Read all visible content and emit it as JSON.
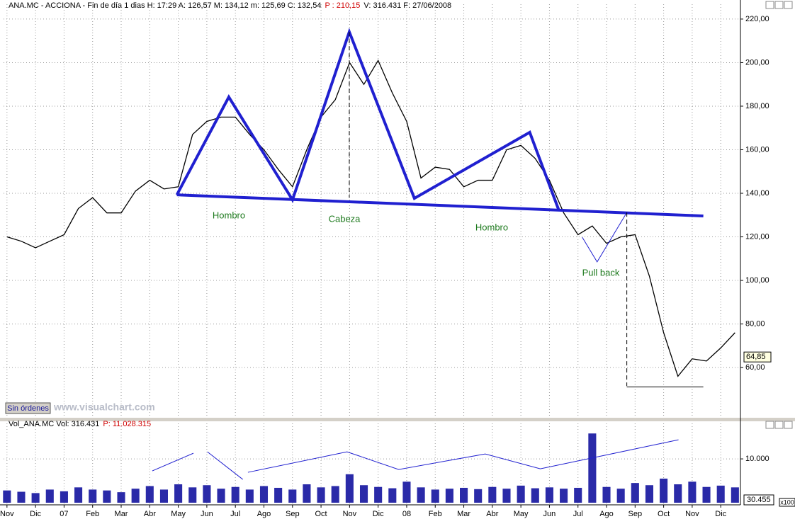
{
  "chart_data": [
    {
      "type": "line",
      "title": "ANA.MC - ACCIONA - Fin de día 1 dias  H: 17:29  A: 126,57  M: 134,12  m: 125,69  C: 132,54",
      "title_highlight": "P : 210,15",
      "title_tail": "V: 316.431  F: 27/06/2008",
      "x": [
        0,
        0.5,
        1,
        1.5,
        2,
        2.5,
        3,
        3.5,
        4,
        4.5,
        5,
        5.5,
        6,
        6.5,
        7,
        7.5,
        8,
        8.5,
        9,
        9.5,
        10,
        10.5,
        11,
        11.5,
        12,
        12.5,
        13,
        13.5,
        14,
        14.5,
        15,
        15.5,
        16,
        16.5,
        17,
        17.5,
        18,
        18.5,
        19,
        19.5,
        20,
        20.5,
        21,
        21.5,
        22,
        22.5,
        23,
        23.5,
        24,
        24.5,
        25,
        25.5
      ],
      "values": [
        120,
        118,
        115,
        118,
        121,
        133,
        138,
        131,
        131,
        141,
        146,
        142,
        143,
        167,
        173,
        175,
        175,
        167,
        160,
        151,
        143,
        160,
        175,
        183,
        200,
        190,
        201,
        186,
        173,
        147,
        152,
        151,
        143,
        146,
        146,
        160,
        162,
        156,
        146,
        131,
        121,
        125,
        117,
        120,
        121,
        102,
        76,
        56,
        64,
        63,
        69,
        76
      ],
      "color": "#000000",
      "xlim": [
        -0.12,
        25.69
      ],
      "xticks": [
        0,
        1,
        2,
        3,
        4,
        5,
        6,
        7,
        8,
        9,
        10,
        11,
        12,
        13,
        14,
        15,
        16,
        17,
        18,
        19,
        20,
        21,
        22,
        23,
        24,
        25
      ],
      "ylim": [
        37.6,
        224.2
      ],
      "yticks": [
        {
          "value": 60,
          "label": "60,00"
        },
        {
          "value": 80,
          "label": "80,00"
        },
        {
          "value": 100,
          "label": "100,00"
        },
        {
          "value": 120,
          "label": "120,00"
        },
        {
          "value": 140,
          "label": "140,00"
        },
        {
          "value": 160,
          "label": "160,00"
        },
        {
          "value": 180,
          "label": "180,00"
        },
        {
          "value": 200,
          "label": "200,00"
        },
        {
          "value": 220,
          "label": "220,00"
        }
      ],
      "grid": true,
      "last_value": {
        "value": 64.85,
        "label": "64,85"
      },
      "annotations": [
        "Hombro",
        "Cabeza",
        "Hombro",
        "Pull back"
      ],
      "pattern_lines": [
        {
          "color": "#2020d0",
          "width": 4,
          "dashed": false,
          "points": [
            [
              5.95,
              139.3
            ],
            [
              7.77,
              184.2
            ],
            [
              10.0,
              137
            ],
            [
              11.99,
              214.1
            ],
            [
              14.27,
              137.7
            ],
            [
              18.31,
              168
            ],
            [
              19.33,
              132.2
            ]
          ]
        },
        {
          "color": "#2020d0",
          "width": 4,
          "dashed": false,
          "points": [
            [
              5.95,
              139.3
            ],
            [
              24.39,
              129.6
            ]
          ]
        },
        {
          "color": "#2020d0",
          "width": 1,
          "dashed": false,
          "points": [
            [
              20.15,
              119.8
            ],
            [
              20.67,
              108.5
            ],
            [
              21.71,
              131.2
            ]
          ]
        },
        {
          "color": "#000000",
          "width": 1,
          "dashed": true,
          "points": [
            [
              11.99,
              214.1
            ],
            [
              11.99,
              138
            ]
          ]
        },
        {
          "color": "#000000",
          "width": 1,
          "dashed": true,
          "points": [
            [
              21.71,
              131.2
            ],
            [
              21.71,
              51.5
            ]
          ]
        },
        {
          "color": "#000000",
          "width": 1,
          "dashed": false,
          "points": [
            [
              21.71,
              51.1
            ],
            [
              24.39,
              51.1
            ]
          ]
        }
      ],
      "button": "Sin órdenes",
      "watermark": "www.visualchart.com"
    },
    {
      "type": "bar",
      "title": "Vol_ANA.MC  Vol: 316.431",
      "title_highlight": "P: 11.028.315",
      "x": [
        0,
        0.5,
        1,
        1.5,
        2,
        2.5,
        3,
        3.5,
        4,
        4.5,
        5,
        5.5,
        6,
        6.5,
        7,
        7.5,
        8,
        8.5,
        9,
        9.5,
        10,
        10.5,
        11,
        11.5,
        12,
        12.5,
        13,
        13.5,
        14,
        14.5,
        15,
        15.5,
        16,
        16.5,
        17,
        17.5,
        18,
        18.5,
        19,
        19.5,
        20,
        20.5,
        21,
        21.5,
        22,
        22.5,
        23,
        23.5,
        24,
        24.5,
        25,
        25.5
      ],
      "values": [
        2800,
        2500,
        2200,
        3000,
        2600,
        3500,
        3000,
        2800,
        2400,
        3200,
        3800,
        3000,
        4200,
        3500,
        4000,
        3200,
        3600,
        3000,
        3800,
        3400,
        3000,
        4200,
        3500,
        3800,
        6500,
        4000,
        3600,
        3300,
        4800,
        3500,
        3000,
        3200,
        3400,
        3100,
        3600,
        3200,
        3900,
        3300,
        3500,
        3200,
        3400,
        15800,
        3600,
        3200,
        4500,
        4000,
        5500,
        4200,
        4800,
        3600,
        3900,
        3500
      ],
      "color": "#2a2aa8",
      "xlim": [
        -0.12,
        25.69
      ],
      "xticks": [
        {
          "value": 0,
          "label": "Nov"
        },
        {
          "value": 1,
          "label": "Dic"
        },
        {
          "value": 2,
          "label": "07"
        },
        {
          "value": 3,
          "label": "Feb"
        },
        {
          "value": 4,
          "label": "Mar"
        },
        {
          "value": 5,
          "label": "Abr"
        },
        {
          "value": 6,
          "label": "May"
        },
        {
          "value": 7,
          "label": "Jun"
        },
        {
          "value": 8,
          "label": "Jul"
        },
        {
          "value": 9,
          "label": "Ago"
        },
        {
          "value": 10,
          "label": "Sep"
        },
        {
          "value": 11,
          "label": "Oct"
        },
        {
          "value": 12,
          "label": "Nov"
        },
        {
          "value": 13,
          "label": "Dic"
        },
        {
          "value": 14,
          "label": "08"
        },
        {
          "value": 15,
          "label": "Feb"
        },
        {
          "value": 16,
          "label": "Mar"
        },
        {
          "value": 17,
          "label": "Abr"
        },
        {
          "value": 18,
          "label": "May"
        },
        {
          "value": 19,
          "label": "Jun"
        },
        {
          "value": 20,
          "label": "Jul"
        },
        {
          "value": 21,
          "label": "Ago"
        },
        {
          "value": 22,
          "label": "Sep"
        },
        {
          "value": 23,
          "label": "Oct"
        },
        {
          "value": 24,
          "label": "Nov"
        },
        {
          "value": 25,
          "label": "Dic"
        }
      ],
      "ylim": [
        0,
        16800
      ],
      "yticks": [
        {
          "value": 10000,
          "label": "10.000"
        }
      ],
      "grid": true,
      "last_label": "30.455",
      "unit_label": "x100",
      "pattern_lines": [
        {
          "color": "#2020d0",
          "width": 1,
          "dashed": false,
          "points": [
            [
              5.09,
              7258
            ],
            [
              6.53,
              11290
            ]
          ]
        },
        {
          "color": "#2020d0",
          "width": 1,
          "dashed": false,
          "points": [
            [
              7.02,
              11613
            ],
            [
              8.26,
              5323
            ]
          ]
        },
        {
          "color": "#2020d0",
          "width": 1,
          "dashed": false,
          "points": [
            [
              8.44,
              6935
            ],
            [
              11.91,
              11613
            ],
            [
              13.72,
              7581
            ],
            [
              16.75,
              11129
            ],
            [
              18.68,
              7742
            ],
            [
              23.52,
              14355
            ]
          ]
        }
      ]
    }
  ]
}
